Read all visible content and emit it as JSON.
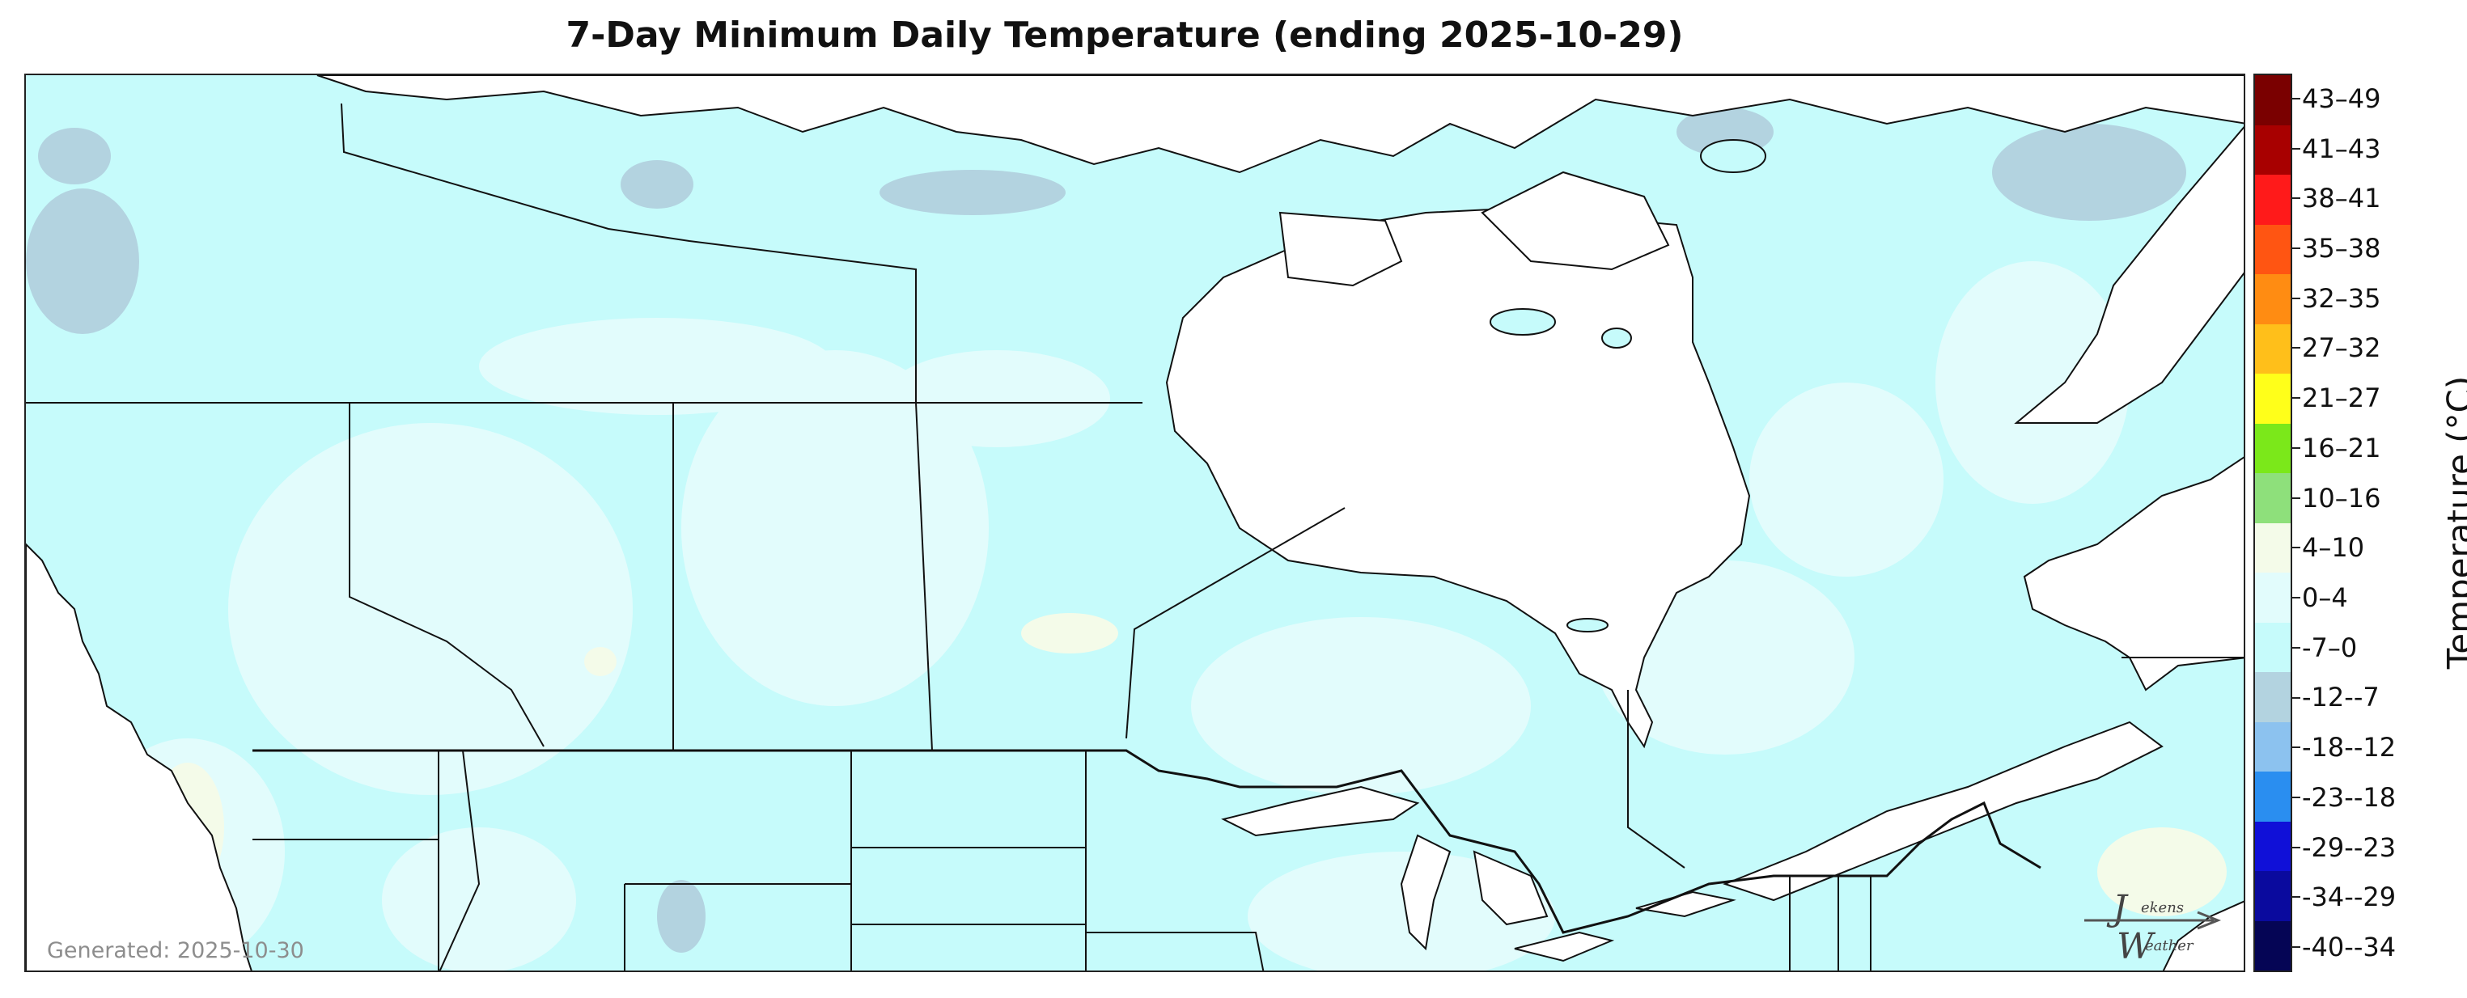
{
  "title": "7-Day Minimum Daily Temperature (ending 2025-10-29)",
  "generated_label": "Generated: 2025-10-30",
  "colorbar": {
    "title": "Temperature (°C)",
    "bins": [
      {
        "label": "43–49",
        "color": "#7a0000"
      },
      {
        "label": "41–43",
        "color": "#a80000"
      },
      {
        "label": "38–41",
        "color": "#ff1a1a"
      },
      {
        "label": "35–38",
        "color": "#ff5512"
      },
      {
        "label": "32–35",
        "color": "#ff8c12"
      },
      {
        "label": "27–32",
        "color": "#ffbf1a"
      },
      {
        "label": "21–27",
        "color": "#ffff1a"
      },
      {
        "label": "16–21",
        "color": "#7be81a"
      },
      {
        "label": "10–16",
        "color": "#8ee07b"
      },
      {
        "label": "4–10",
        "color": "#f4fbe9"
      },
      {
        "label": "0–4",
        "color": "#e2fcfc"
      },
      {
        "label": "-7–0",
        "color": "#c6fbfb"
      },
      {
        "label": "-12--7",
        "color": "#b3d3e0"
      },
      {
        "label": "-18--12",
        "color": "#8cc2ef"
      },
      {
        "label": "-23--18",
        "color": "#2a8ef0"
      },
      {
        "label": "-29--23",
        "color": "#1010d8"
      },
      {
        "label": "-34--29",
        "color": "#0a0a9e"
      },
      {
        "label": "-40--34",
        "color": "#050555"
      }
    ]
  },
  "logo": {
    "line1": "ekens",
    "line2": "eather",
    "initials": [
      "J",
      "W"
    ]
  }
}
